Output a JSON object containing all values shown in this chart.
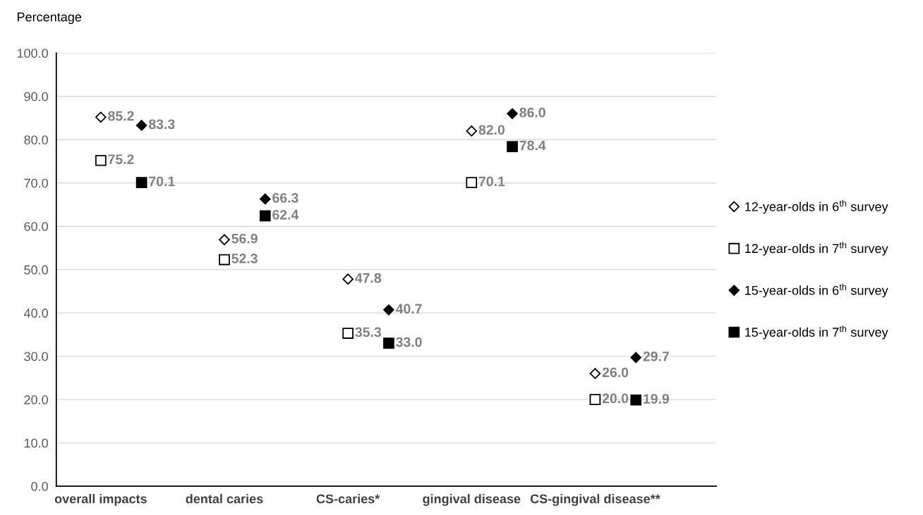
{
  "chart_data": {
    "type": "scatter",
    "ylabel": "Percentage",
    "categories": [
      "overall impacts",
      "dental caries",
      "CS-caries*",
      "gingival disease",
      "CS-gingival disease**"
    ],
    "series": [
      {
        "name": "12-year-olds in 6$^{th}$ survey",
        "color": "#ffffff",
        "marker": "diamond",
        "values": [
          85.2,
          56.9,
          47.8,
          82.0,
          26.0
        ],
        "value_labels": [
          "85.2",
          "56.9",
          "47.8",
          "82.0",
          "26.0"
        ]
      },
      {
        "name": "12-year-olds in 7$^{th}$ survey",
        "color": "#ffffff",
        "marker": "square",
        "values": [
          75.2,
          52.3,
          35.3,
          70.1,
          20.0
        ],
        "value_labels": [
          "75.2",
          "52.3",
          "35.3",
          "70.1",
          "20.0"
        ]
      },
      {
        "name": "15-year-olds in 6$^{th}$ survey",
        "color": "#000000",
        "marker": "diamond",
        "values": [
          83.3,
          66.3,
          40.7,
          86.0,
          29.7
        ],
        "value_labels": [
          "83.3",
          "66.3",
          "40.7",
          "86.0",
          "29.7"
        ]
      },
      {
        "name": "15-year-olds in 7$^{th}$ survey",
        "color": "#000000",
        "marker": "square",
        "values": [
          70.1,
          62.4,
          33.0,
          78.4,
          19.9
        ],
        "value_labels": [
          "70.1",
          "62.4",
          "33.0",
          "78.4",
          "19.9"
        ]
      }
    ],
    "ylim": [
      0,
      100
    ],
    "yticks": [
      {
        "value": 0,
        "label": "0.0"
      },
      {
        "value": 10,
        "label": "10.0"
      },
      {
        "value": 20,
        "label": "20.0"
      },
      {
        "value": 30,
        "label": "30.0"
      },
      {
        "value": 40,
        "label": "40.0"
      },
      {
        "value": 50,
        "label": "50.0"
      },
      {
        "value": 60,
        "label": "60.0"
      },
      {
        "value": 70,
        "label": "70.0"
      },
      {
        "value": 80,
        "label": "80.0"
      },
      {
        "value": 90,
        "label": "90.0"
      },
      {
        "value": 100,
        "label": "100.0"
      }
    ],
    "grid": "y",
    "legend": "right"
  }
}
